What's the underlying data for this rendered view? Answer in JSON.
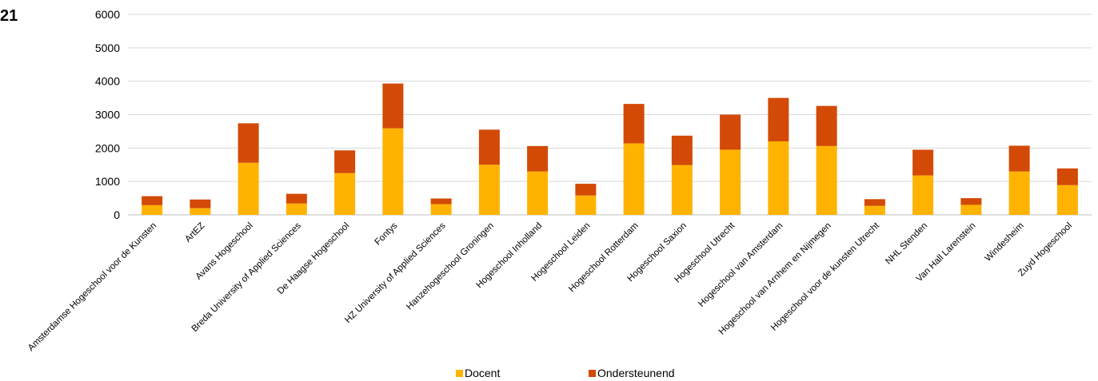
{
  "figure_label": "21",
  "colors": {
    "docent": "#FFB300",
    "ondersteunend": "#D24A06",
    "grid": "#D9D9D9",
    "axis": "#BFBFBF"
  },
  "chart_data": {
    "type": "bar",
    "stacked": true,
    "title": "",
    "xlabel": "",
    "ylabel": "",
    "ylim": [
      0,
      6000
    ],
    "yticks": [
      0,
      1000,
      2000,
      3000,
      4000,
      5000,
      6000
    ],
    "grid": true,
    "legend_position": "bottom",
    "categories": [
      "Amsterdamse Hogeschool voor de Kunsten",
      "ArtEZ",
      "Avans Hogeschool",
      "Breda University of Applied Sciences",
      "De Haagse Hogeschool",
      "Fontys",
      "HZ University of Applied Sciences",
      "Hanzehogeschool Groningen",
      "Hogeschool Inholland",
      "Hogeschool Leiden",
      "Hogeschool Rotterdam",
      "Hogeschool Saxion",
      "Hogeschool Utrecht",
      "Hogeschool van Amsterdam",
      "Hogeschool van Arnhem en Nijmegen",
      "Hogeschool voor de kunsten Utrecht",
      "NHL Stenden",
      "Van Hall Larenstein",
      "Windesheim",
      "Zuyd Hogeschool"
    ],
    "series": [
      {
        "name": "Docent",
        "values": [
          290,
          200,
          1560,
          340,
          1250,
          2590,
          320,
          1500,
          1300,
          580,
          2140,
          1490,
          1950,
          2200,
          2060,
          270,
          1180,
          300,
          1300,
          890
        ]
      },
      {
        "name": "Ondersteunend",
        "values": [
          270,
          260,
          1180,
          290,
          680,
          1340,
          170,
          1050,
          760,
          350,
          1180,
          880,
          1050,
          1300,
          1200,
          200,
          770,
          200,
          770,
          500
        ]
      }
    ]
  }
}
